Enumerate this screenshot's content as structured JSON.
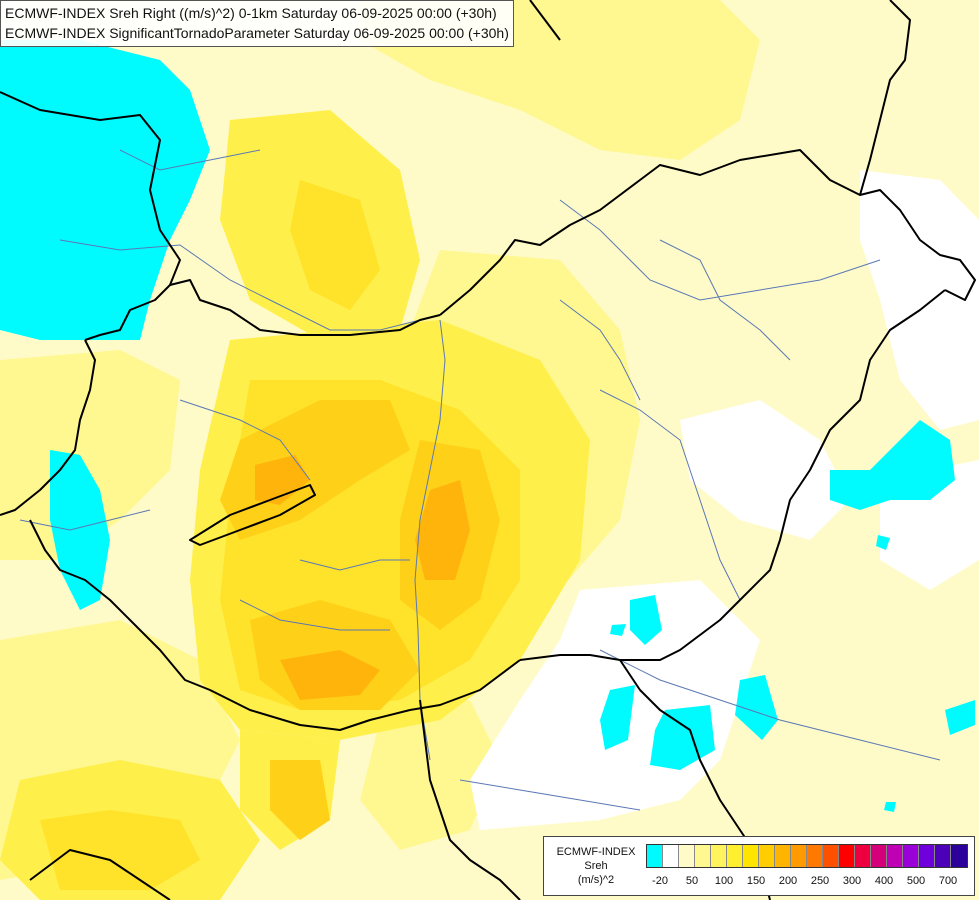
{
  "map": {
    "title_lines": [
      "ECMWF-INDEX Sreh Right ((m/s)^2) 0-1km Saturday 06-09-2025 00:00 (+30h)",
      "ECMWF-INDEX SignificantTornadoParameter Saturday 06-09-2025 00:00 (+30h)"
    ],
    "colors": {
      "background": "#fffbc9",
      "cyan": "#00fbff",
      "white": "#ffffff",
      "pale_yellow": "#fffbc9",
      "light_yellow": "#fff78f",
      "yellow": "#ffef4a",
      "yellow_strong": "#ffe22a",
      "gold": "#ffd018",
      "orange": "#ffb40c",
      "borders": "#000000",
      "rivers": "#5a78b4"
    }
  },
  "legend": {
    "label_lines": [
      "ECMWF-INDEX",
      "Sreh",
      "(m/s)^2"
    ],
    "colors": [
      "#00fbff",
      "#ffffff",
      "#fffbc9",
      "#fff78f",
      "#fff35e",
      "#ffef2e",
      "#ffe400",
      "#ffcd00",
      "#ffb400",
      "#ff9b00",
      "#ff7800",
      "#ff5000",
      "#ff0000",
      "#ee0040",
      "#d4007a",
      "#c000b4",
      "#9a00d8",
      "#6f00dc",
      "#4c00b8",
      "#2c009a"
    ],
    "ticks": [
      "-20",
      "50",
      "100",
      "150",
      "200",
      "250",
      "300",
      "400",
      "500",
      "700"
    ]
  }
}
